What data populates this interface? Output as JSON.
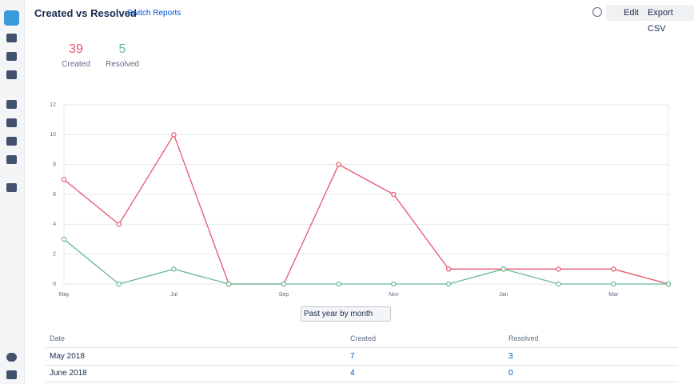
{
  "header": {
    "title": "Created vs Resolved",
    "switch": "Switch Reports",
    "edit": "Edit",
    "export": "Export CSV"
  },
  "stats": [
    {
      "value": "39",
      "label": "Created"
    },
    {
      "value": "5",
      "label": "Resolved"
    }
  ],
  "chart_data": {
    "type": "line",
    "categories": [
      "May",
      null,
      "Jul",
      null,
      "Sep",
      null,
      "Nov",
      null,
      "Jan",
      null,
      "Mar",
      null
    ],
    "series": [
      {
        "name": "Created",
        "color": "#e5566c",
        "values": [
          7,
          4,
          10,
          0,
          0,
          8,
          6,
          1,
          1,
          1,
          1,
          0
        ]
      },
      {
        "name": "Resolved",
        "color": "#67b893",
        "values": [
          3,
          0,
          1,
          0,
          0,
          0,
          0,
          0,
          1,
          0,
          0,
          0
        ]
      }
    ],
    "ylim": [
      0,
      12
    ],
    "yticks": [
      0,
      2,
      4,
      6,
      8,
      10,
      12
    ],
    "grid": true
  },
  "period": "Past year by month",
  "table": {
    "header": [
      "Date",
      "Created",
      "Resolved"
    ],
    "rows": [
      [
        "May 2018",
        "7",
        "3"
      ],
      [
        "June 2018",
        "4",
        "0"
      ]
    ]
  }
}
